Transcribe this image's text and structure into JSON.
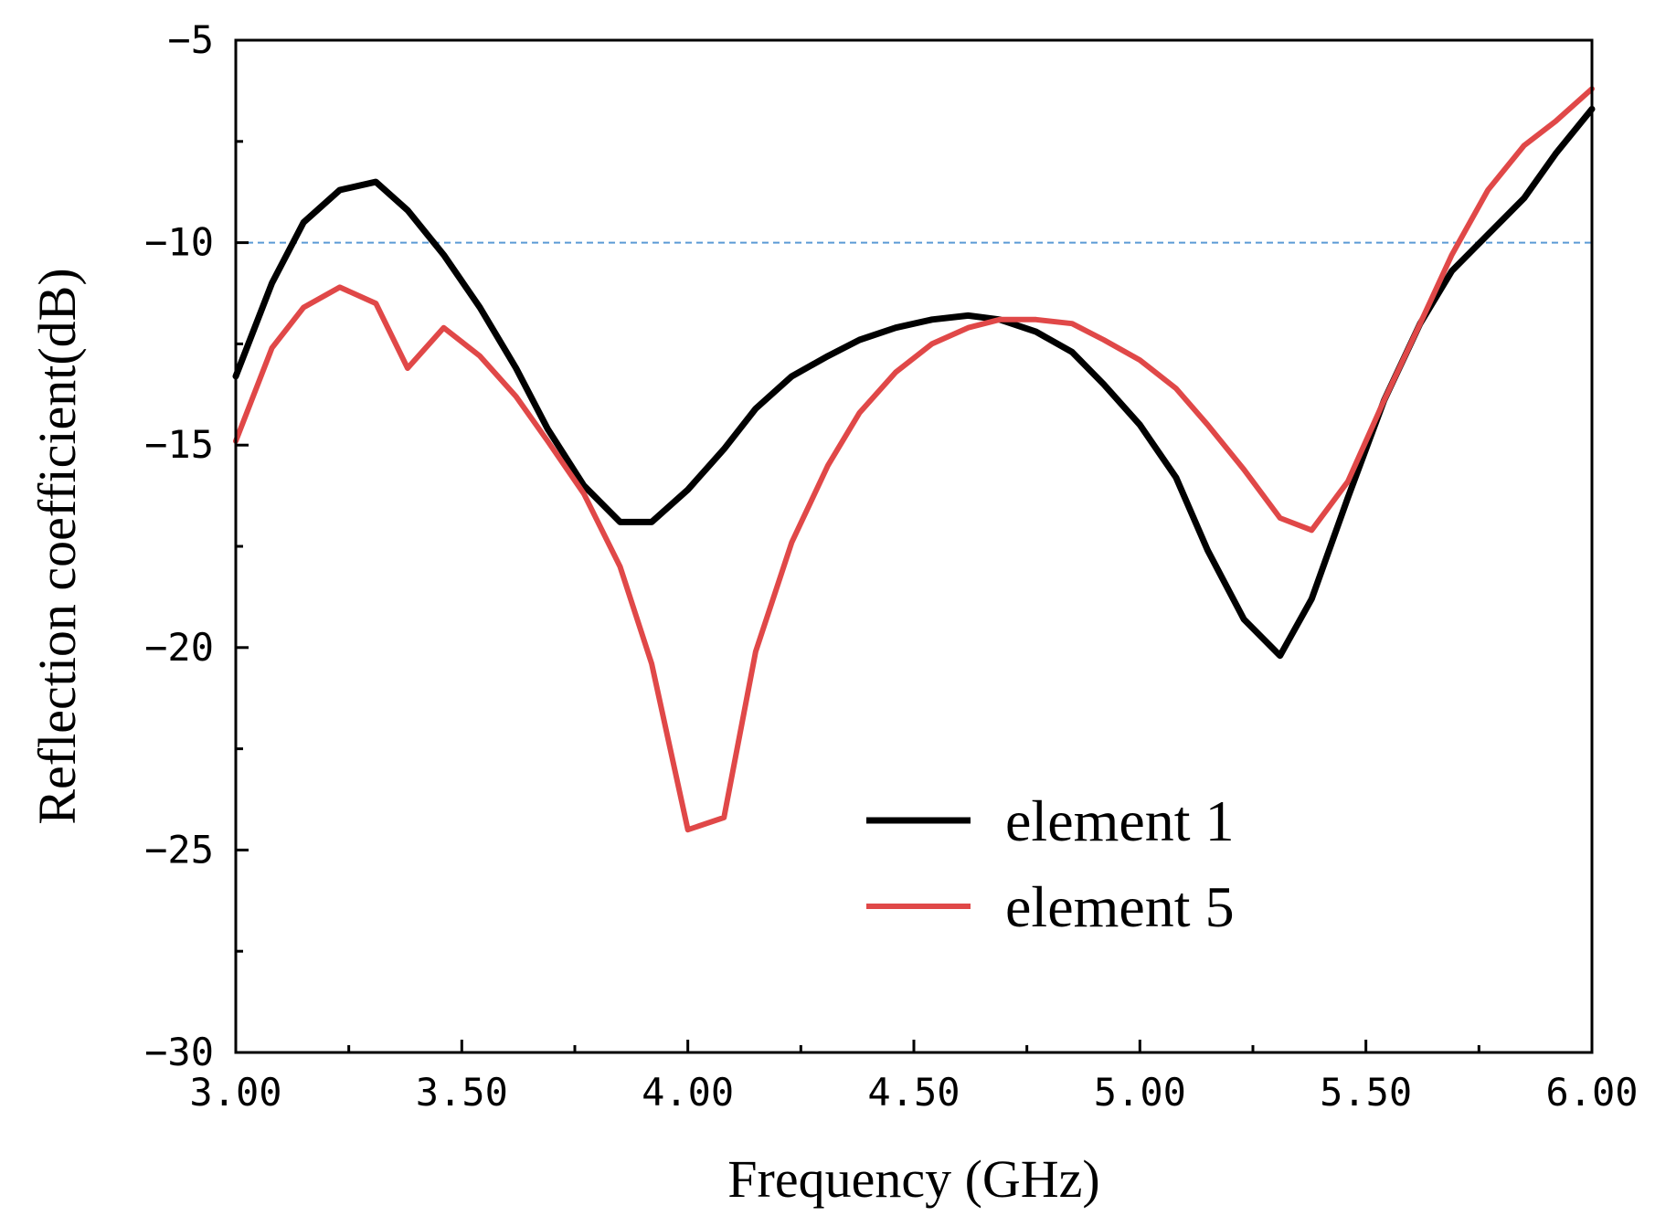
{
  "chart_data": {
    "type": "line",
    "title": "",
    "xlabel": "Frequency (GHz)",
    "ylabel": "Reflection coefficient(dB)",
    "xlim": [
      3.0,
      6.0
    ],
    "ylim": [
      -30,
      -5
    ],
    "xticks": [
      3.0,
      3.5,
      4.0,
      4.5,
      5.0,
      5.5,
      6.0
    ],
    "xtick_labels": [
      "3.00",
      "3.50",
      "4.00",
      "4.50",
      "5.00",
      "5.50",
      "6.00"
    ],
    "yticks": [
      -30,
      -25,
      -20,
      -15,
      -10,
      -5
    ],
    "ytick_labels": [
      "−30",
      "−25",
      "−20",
      "−15",
      "−10",
      "−5"
    ],
    "reference_line": {
      "y": -10,
      "color": "#5b9bd5",
      "style": "dashed"
    },
    "legend_position": "bottom-right",
    "grid": false,
    "series": [
      {
        "name": "element 1",
        "color": "#000000",
        "x": [
          3.0,
          3.08,
          3.15,
          3.23,
          3.31,
          3.38,
          3.46,
          3.54,
          3.62,
          3.69,
          3.77,
          3.85,
          3.92,
          4.0,
          4.08,
          4.15,
          4.23,
          4.31,
          4.38,
          4.46,
          4.54,
          4.62,
          4.69,
          4.77,
          4.85,
          4.92,
          5.0,
          5.08,
          5.15,
          5.23,
          5.31,
          5.38,
          5.46,
          5.54,
          5.62,
          5.69,
          5.77,
          5.85,
          5.92,
          6.0
        ],
        "y": [
          -13.3,
          -11.0,
          -9.5,
          -8.7,
          -8.5,
          -9.2,
          -10.3,
          -11.6,
          -13.1,
          -14.6,
          -16.0,
          -16.9,
          -16.9,
          -16.1,
          -15.1,
          -14.1,
          -13.3,
          -12.8,
          -12.4,
          -12.1,
          -11.9,
          -11.8,
          -11.9,
          -12.2,
          -12.7,
          -13.5,
          -14.5,
          -15.8,
          -17.6,
          -19.3,
          -20.2,
          -18.8,
          -16.3,
          -13.9,
          -12.0,
          -10.7,
          -9.8,
          -8.9,
          -7.8,
          -6.7
        ]
      },
      {
        "name": "element 5",
        "color": "#e04848",
        "x": [
          3.0,
          3.08,
          3.15,
          3.23,
          3.31,
          3.38,
          3.46,
          3.54,
          3.62,
          3.69,
          3.77,
          3.85,
          3.92,
          4.0,
          4.08,
          4.15,
          4.23,
          4.31,
          4.38,
          4.46,
          4.54,
          4.62,
          4.69,
          4.77,
          4.85,
          4.92,
          5.0,
          5.08,
          5.15,
          5.23,
          5.31,
          5.38,
          5.46,
          5.54,
          5.62,
          5.69,
          5.77,
          5.85,
          5.92,
          6.0
        ],
        "y": [
          -14.9,
          -12.6,
          -11.6,
          -11.1,
          -11.5,
          -13.1,
          -12.1,
          -12.8,
          -13.8,
          -14.9,
          -16.2,
          -18.0,
          -20.4,
          -24.5,
          -24.2,
          -20.1,
          -17.4,
          -15.5,
          -14.2,
          -13.2,
          -12.5,
          -12.1,
          -11.9,
          -11.9,
          -12.0,
          -12.4,
          -12.9,
          -13.6,
          -14.5,
          -15.6,
          -16.8,
          -17.1,
          -15.9,
          -13.9,
          -12.0,
          -10.3,
          -8.7,
          -7.6,
          -7.0,
          -6.2
        ]
      }
    ]
  }
}
